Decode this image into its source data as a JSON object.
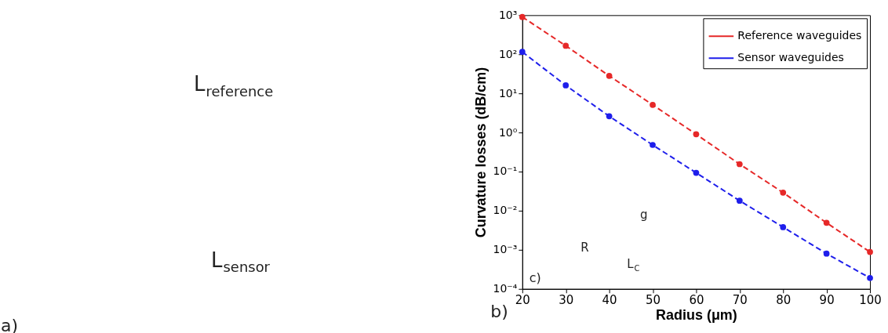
{
  "chart_data": [
    {
      "type": "other",
      "annotations": [
        "L$_{reference}$",
        "L$_{sensor}$",
        "a)"
      ]
    },
    {
      "type": "line",
      "xlabel": "Radius (μm)",
      "ylabel": "Curvature losses (dB/cm)",
      "x": [
        20,
        30,
        40,
        50,
        60,
        70,
        80,
        90,
        100
      ],
      "series": [
        {
          "name": "Reference waveguides",
          "color": "#e62828",
          "values": [
            900,
            165,
            28,
            5.1,
            0.9,
            0.155,
            0.029,
            0.0049,
            0.00088
          ]
        },
        {
          "name": "Sensor waveguides",
          "color": "#1e1eeb",
          "values": [
            115,
            16,
            2.6,
            0.48,
            0.093,
            0.018,
            0.0038,
            0.0008,
            0.00019
          ]
        }
      ],
      "xlim": [
        20,
        100
      ],
      "xticks": [
        20,
        30,
        40,
        50,
        60,
        70,
        80,
        90,
        100
      ],
      "ylim": [
        0.0001,
        1000
      ],
      "yticks": [
        {
          "value": 0.0001,
          "label": "10⁻⁴"
        },
        {
          "value": 0.001,
          "label": "10⁻³"
        },
        {
          "value": 0.01,
          "label": "10⁻²"
        },
        {
          "value": 0.1,
          "label": "10⁻¹"
        },
        {
          "value": 1,
          "label": "10⁰"
        },
        {
          "value": 10,
          "label": "10¹"
        },
        {
          "value": 100,
          "label": "10²"
        },
        {
          "value": 1000,
          "label": "10³"
        }
      ],
      "log": "y",
      "grid": false,
      "legend": "top right",
      "marker": "circle",
      "line_style": "dashed",
      "annotations": [
        "b)",
        "c)",
        "g",
        "R",
        "L$_{C}$"
      ]
    }
  ]
}
